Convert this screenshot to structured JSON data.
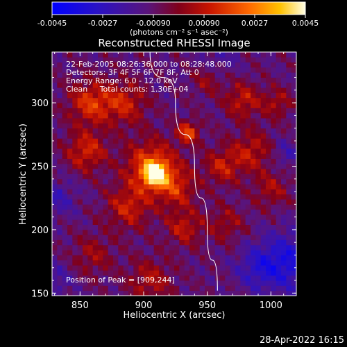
{
  "chart_data": {
    "type": "heatmap",
    "title": "Reconstructed RHESSI Image",
    "xlabel": "Heliocentric X (arcsec)",
    "ylabel": "Heliocentric Y (arcsec)",
    "xlim": [
      828,
      1020
    ],
    "ylim": [
      148,
      340
    ],
    "x_ticks": [
      850,
      900,
      950,
      1000
    ],
    "y_ticks": [
      150,
      200,
      250,
      300
    ],
    "colorbar": {
      "range": [
        -0.0045,
        0.0045
      ],
      "ticks": [
        "-0.0045",
        "-0.0027",
        "-0.00090",
        "0.00090",
        "0.0027",
        "0.0045"
      ],
      "unit_text": "(photons cm⁻² s⁻¹ asec⁻²)"
    },
    "annotations": [
      "22-Feb-2005 08:26:36.000 to 08:28:48.000",
      "Detectors: 3F 4F 5F 6F 7F 8F, Att 0",
      "Energy Range: 6.0 - 12.0 keV",
      "Clean     Total counts: 1.30E+04"
    ],
    "peak_label": "Position of Peak = [909,244]",
    "peak": {
      "x": 909,
      "y": 244
    },
    "blobs": [
      {
        "x": 909,
        "y": 244,
        "value": 0.0045,
        "sigma": 6
      },
      {
        "x": 906,
        "y": 250,
        "value": 0.003,
        "sigma": 14
      },
      {
        "x": 935,
        "y": 277,
        "value": 0.0028,
        "sigma": 6
      },
      {
        "x": 858,
        "y": 300,
        "value": 0.0024,
        "sigma": 12
      },
      {
        "x": 855,
        "y": 262,
        "value": 0.0022,
        "sigma": 11
      },
      {
        "x": 885,
        "y": 300,
        "value": 0.002,
        "sigma": 12
      },
      {
        "x": 888,
        "y": 218,
        "value": 0.002,
        "sigma": 12
      },
      {
        "x": 925,
        "y": 233,
        "value": 0.002,
        "sigma": 11
      },
      {
        "x": 932,
        "y": 202,
        "value": 0.0018,
        "sigma": 10
      },
      {
        "x": 962,
        "y": 250,
        "value": 0.0019,
        "sigma": 10
      },
      {
        "x": 985,
        "y": 262,
        "value": 0.0018,
        "sigma": 11
      },
      {
        "x": 978,
        "y": 302,
        "value": 0.0019,
        "sigma": 10
      },
      {
        "x": 1005,
        "y": 300,
        "value": 0.0015,
        "sigma": 8
      },
      {
        "x": 1000,
        "y": 232,
        "value": 0.0014,
        "sigma": 10
      },
      {
        "x": 965,
        "y": 205,
        "value": 0.0013,
        "sigma": 10
      },
      {
        "x": 905,
        "y": 160,
        "value": 0.0016,
        "sigma": 12
      },
      {
        "x": 860,
        "y": 180,
        "value": 0.0013,
        "sigma": 11
      },
      {
        "x": 950,
        "y": 318,
        "value": 0.0012,
        "sigma": 8
      },
      {
        "x": 1015,
        "y": 175,
        "value": -0.0022,
        "sigma": 16
      },
      {
        "x": 990,
        "y": 170,
        "value": -0.0015,
        "sigma": 12
      },
      {
        "x": 832,
        "y": 225,
        "value": -0.0012,
        "sigma": 10
      },
      {
        "x": 830,
        "y": 160,
        "value": -0.001,
        "sigma": 10
      },
      {
        "x": 960,
        "y": 335,
        "value": -0.0008,
        "sigma": 10
      },
      {
        "x": 1012,
        "y": 260,
        "value": -0.001,
        "sigma": 8
      }
    ],
    "limb_curve": [
      [
        905,
        340
      ],
      [
        925,
        300
      ],
      [
        940,
        250
      ],
      [
        950,
        200
      ],
      [
        958,
        152
      ]
    ],
    "grid": false
  },
  "footer": {
    "timestamp": "28-Apr-2022 16:15"
  }
}
